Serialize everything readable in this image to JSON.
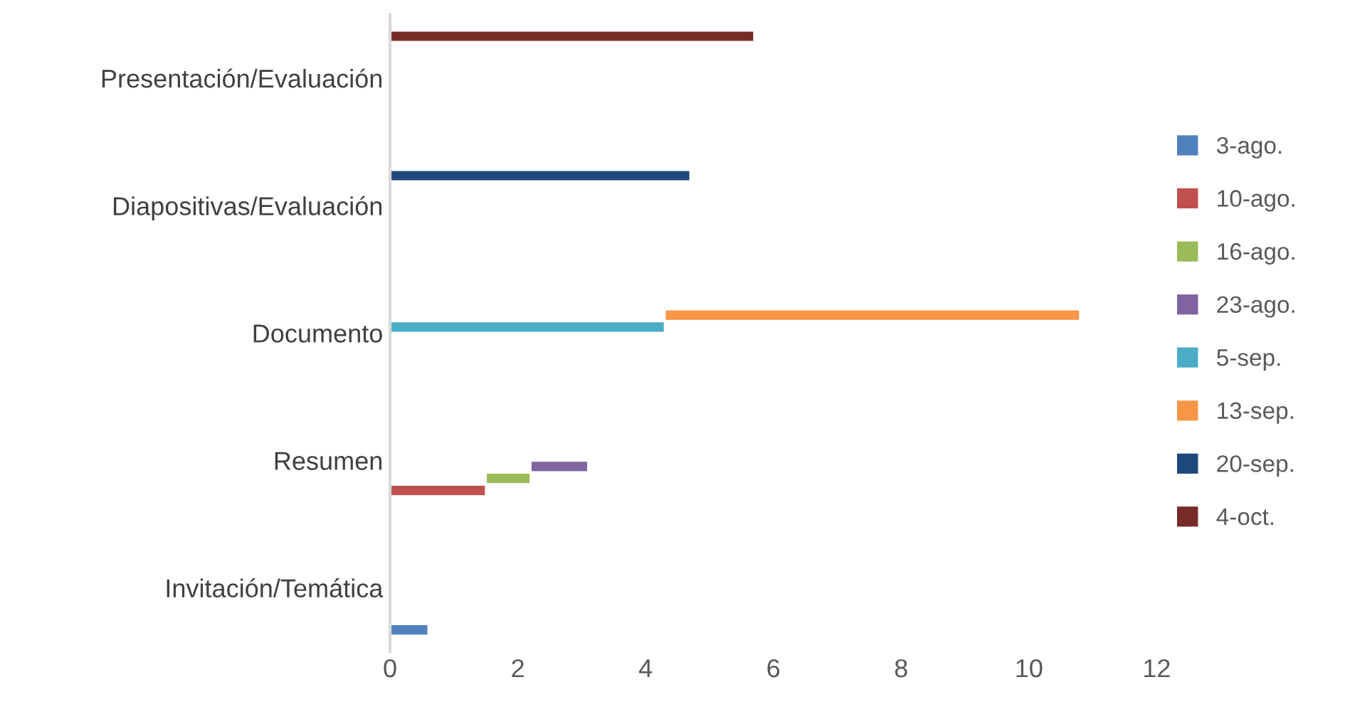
{
  "chart_data": {
    "type": "bar",
    "orientation": "horizontal",
    "stacked": true,
    "categories": [
      "Presentación/Evaluación",
      "Diapositivas/Evaluación",
      "Documento",
      "Resumen",
      "Invitación/Temática"
    ],
    "series": [
      {
        "name": "3-ago.",
        "color": "#4f81bd",
        "values": [
          null,
          null,
          null,
          null,
          0.6
        ]
      },
      {
        "name": "10-ago.",
        "color": "#c0504d",
        "values": [
          null,
          null,
          null,
          1.5,
          null
        ]
      },
      {
        "name": "16-ago.",
        "color": "#9bbb59",
        "values": [
          null,
          null,
          null,
          0.7,
          null
        ]
      },
      {
        "name": "23-ago.",
        "color": "#8064a2",
        "values": [
          null,
          null,
          null,
          0.9,
          null
        ]
      },
      {
        "name": "5-sep.",
        "color": "#4bacc6",
        "values": [
          null,
          null,
          4.3,
          null,
          null
        ]
      },
      {
        "name": "13-sep.",
        "color": "#f79646",
        "values": [
          null,
          null,
          6.5,
          null,
          null
        ]
      },
      {
        "name": "20-sep.",
        "color": "#1f497d",
        "values": [
          null,
          4.7,
          null,
          null,
          null
        ]
      },
      {
        "name": "4-oct.",
        "color": "#772c2a",
        "values": [
          5.7,
          null,
          null,
          null,
          null
        ]
      }
    ],
    "xlim": [
      0,
      12
    ],
    "xticks": [
      0,
      2,
      4,
      6,
      8,
      10,
      12
    ],
    "grid": false,
    "legend": "right"
  }
}
